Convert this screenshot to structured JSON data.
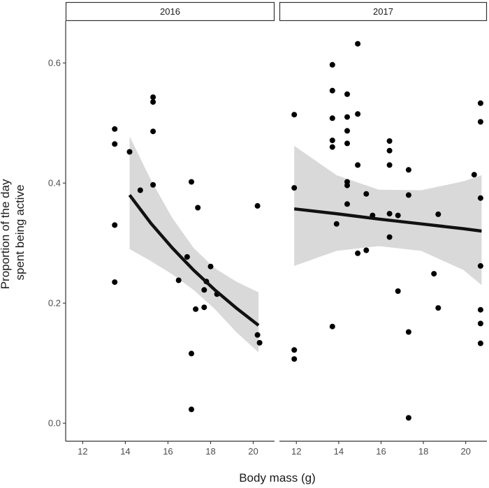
{
  "chart_data": {
    "type": "scatter",
    "xlabel": "Body mass (g)",
    "ylabel": [
      "Proportion of the day",
      "spent being active"
    ],
    "xlim": [
      11.2,
      21.0
    ],
    "ylim": [
      -0.03,
      0.67
    ],
    "xticks": [
      12,
      14,
      16,
      18,
      20
    ],
    "yticks": [
      0.0,
      0.2,
      0.4,
      0.6
    ],
    "ytick_labels": [
      "0.0",
      "0.2",
      "0.4",
      "0.6"
    ],
    "grid": false,
    "colors": {
      "point": "#000000",
      "fit": "#111111",
      "band": "#d9d9d9"
    },
    "panels": [
      {
        "label": "2016",
        "points": [
          [
            13.5,
            0.49
          ],
          [
            13.5,
            0.465
          ],
          [
            13.5,
            0.33
          ],
          [
            13.5,
            0.235
          ],
          [
            14.2,
            0.452
          ],
          [
            14.7,
            0.388
          ],
          [
            15.3,
            0.543
          ],
          [
            15.3,
            0.535
          ],
          [
            15.3,
            0.486
          ],
          [
            15.3,
            0.397
          ],
          [
            16.5,
            0.238
          ],
          [
            16.9,
            0.277
          ],
          [
            17.1,
            0.402
          ],
          [
            17.1,
            0.116
          ],
          [
            17.1,
            0.023
          ],
          [
            17.3,
            0.19
          ],
          [
            17.4,
            0.359
          ],
          [
            17.7,
            0.193
          ],
          [
            17.7,
            0.222
          ],
          [
            17.8,
            0.236
          ],
          [
            18.0,
            0.261
          ],
          [
            18.3,
            0.215
          ],
          [
            20.2,
            0.362
          ],
          [
            20.2,
            0.147
          ],
          [
            20.3,
            0.134
          ]
        ],
        "fit": {
          "x": [
            14.2,
            15.2,
            16.2,
            17.2,
            18.2,
            19.2,
            20.25
          ],
          "y": [
            0.38,
            0.333,
            0.292,
            0.255,
            0.222,
            0.192,
            0.163
          ]
        },
        "band_upper": [
          0.478,
          0.405,
          0.342,
          0.292,
          0.258,
          0.236,
          0.218
        ],
        "band_lower": [
          0.29,
          0.27,
          0.248,
          0.222,
          0.19,
          0.152,
          0.118
        ]
      },
      {
        "label": "2017",
        "points": [
          [
            11.9,
            0.514
          ],
          [
            11.9,
            0.392
          ],
          [
            11.9,
            0.122
          ],
          [
            11.9,
            0.107
          ],
          [
            13.7,
            0.597
          ],
          [
            13.7,
            0.554
          ],
          [
            13.7,
            0.508
          ],
          [
            13.7,
            0.471
          ],
          [
            13.7,
            0.46
          ],
          [
            13.7,
            0.161
          ],
          [
            13.9,
            0.332
          ],
          [
            14.4,
            0.548
          ],
          [
            14.4,
            0.51
          ],
          [
            14.4,
            0.487
          ],
          [
            14.4,
            0.466
          ],
          [
            14.4,
            0.402
          ],
          [
            14.4,
            0.396
          ],
          [
            14.4,
            0.365
          ],
          [
            14.9,
            0.632
          ],
          [
            14.9,
            0.515
          ],
          [
            14.9,
            0.43
          ],
          [
            14.9,
            0.283
          ],
          [
            15.3,
            0.382
          ],
          [
            15.3,
            0.288
          ],
          [
            15.6,
            0.346
          ],
          [
            16.4,
            0.47
          ],
          [
            16.4,
            0.454
          ],
          [
            16.4,
            0.43
          ],
          [
            16.4,
            0.349
          ],
          [
            16.4,
            0.31
          ],
          [
            16.8,
            0.346
          ],
          [
            16.8,
            0.22
          ],
          [
            17.3,
            0.422
          ],
          [
            17.3,
            0.38
          ],
          [
            17.3,
            0.152
          ],
          [
            17.3,
            0.009
          ],
          [
            18.5,
            0.249
          ],
          [
            18.7,
            0.348
          ],
          [
            18.7,
            0.192
          ],
          [
            20.4,
            0.414
          ],
          [
            20.7,
            0.533
          ],
          [
            20.7,
            0.502
          ],
          [
            20.7,
            0.375
          ],
          [
            20.7,
            0.262
          ],
          [
            20.7,
            0.189
          ],
          [
            20.7,
            0.166
          ],
          [
            20.7,
            0.133
          ]
        ],
        "fit": {
          "x": [
            11.9,
            13.9,
            15.9,
            17.9,
            19.9,
            20.75
          ],
          "y": [
            0.357,
            0.349,
            0.34,
            0.332,
            0.324,
            0.32
          ]
        },
        "band_upper": [
          0.462,
          0.413,
          0.389,
          0.388,
          0.403,
          0.413
        ],
        "band_lower": [
          0.262,
          0.287,
          0.295,
          0.287,
          0.255,
          0.23
        ]
      }
    ]
  }
}
